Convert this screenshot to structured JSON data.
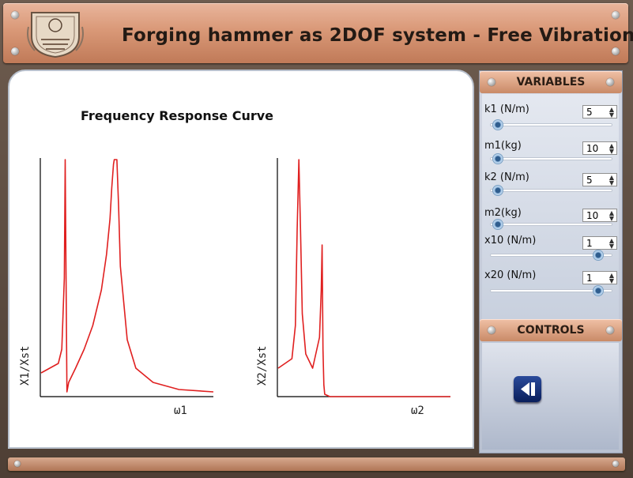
{
  "app": {
    "title": "Forging hammer as 2DOF system - Free Vibration"
  },
  "chart": {
    "title": "Frequency Response Curve"
  },
  "chart_data": [
    {
      "type": "line",
      "title": "Frequency Response Curve",
      "xlabel": "ω1",
      "ylabel": "X1/Xst",
      "color": "#e02020",
      "x": [
        0,
        0.1,
        0.12,
        0.135,
        0.14,
        0.145,
        0.15,
        0.16,
        0.2,
        0.25,
        0.3,
        0.35,
        0.38,
        0.4,
        0.41,
        0.42,
        0.425,
        0.43,
        0.44,
        0.45,
        0.46,
        0.5,
        0.55,
        0.65,
        0.8,
        1.0
      ],
      "y": [
        0.1,
        0.14,
        0.2,
        0.5,
        1.0,
        0.5,
        0.02,
        0.06,
        0.12,
        0.2,
        0.3,
        0.45,
        0.6,
        0.75,
        0.88,
        0.98,
        1.0,
        1.0,
        1.0,
        0.8,
        0.55,
        0.24,
        0.12,
        0.06,
        0.03,
        0.02
      ]
    },
    {
      "type": "line",
      "title": "Frequency Response Curve",
      "xlabel": "ω2",
      "ylabel": "X2/Xst",
      "color": "#e02020",
      "x": [
        0,
        0.08,
        0.1,
        0.11,
        0.12,
        0.13,
        0.14,
        0.16,
        0.2,
        0.24,
        0.25,
        0.255,
        0.26,
        0.265,
        0.27,
        0.3,
        0.4,
        0.6,
        1.0
      ],
      "y": [
        0.12,
        0.16,
        0.3,
        0.7,
        1.0,
        0.7,
        0.35,
        0.18,
        0.12,
        0.25,
        0.45,
        0.64,
        0.2,
        0.05,
        0.01,
        0.0,
        0.0,
        0.0,
        0.0
      ]
    }
  ],
  "sidebar": {
    "variables_header": "VARIABLES",
    "controls_header": "CONTROLS",
    "variables": [
      {
        "label": "k1 (N/m)",
        "value": "5",
        "slider_fraction": 0.02
      },
      {
        "label": "m1(kg)",
        "value": "10",
        "slider_fraction": 0.02
      },
      {
        "label": "k2 (N/m)",
        "value": "5",
        "slider_fraction": 0.02
      },
      {
        "label": "m2(kg)",
        "value": "10",
        "slider_fraction": 0.02
      },
      {
        "label": "x10 (N/m)",
        "value": "1",
        "slider_fraction": 0.92
      },
      {
        "label": "x20 (N/m)",
        "value": "1",
        "slider_fraction": 0.92
      }
    ]
  },
  "icons": {
    "play": "play-pause-icon",
    "logo": "institute-logo-icon"
  }
}
